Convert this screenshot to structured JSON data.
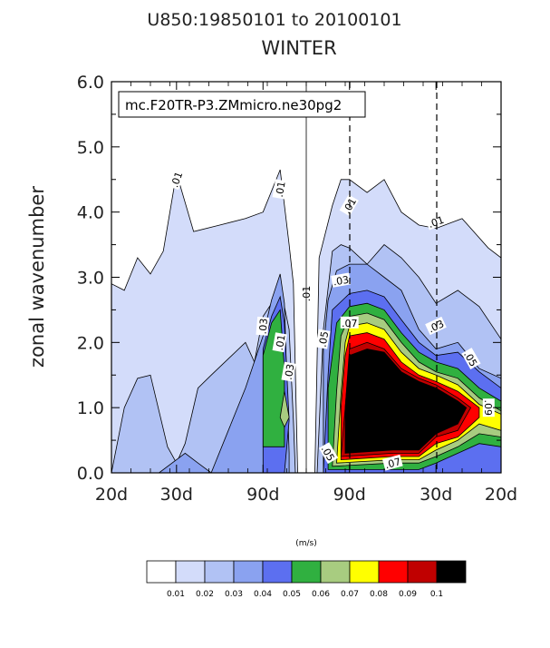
{
  "title_line1": "U850:19850101 to 20100101",
  "title_line2": "WINTER",
  "inset_label": "mc.F20TR-P3.ZMmicro.ne30pg2",
  "colorbar_units": "(m/s)",
  "chart_data": {
    "type": "contour",
    "ylabel": "zonal wavenumber",
    "xlabel": "",
    "ylim": [
      0.0,
      6.0
    ],
    "y_ticks": [
      "0.0",
      "1.0",
      "2.0",
      "3.0",
      "4.0",
      "5.0",
      "6.0"
    ],
    "x_ticks": [
      "20d",
      "30d",
      "90d",
      "90d",
      "30d",
      "20d"
    ],
    "x_tick_positions_freq": [
      -0.05,
      -0.0333,
      -0.0111,
      0.0111,
      0.0333,
      0.05
    ],
    "x_unit": "frequency (cycles/day), period labels in days; westward negative, eastward positive",
    "levels": [
      0.01,
      0.02,
      0.03,
      0.04,
      0.05,
      0.06,
      0.07,
      0.08,
      0.09,
      0.1
    ],
    "level_colors": [
      "#ffffff",
      "#d3dcfa",
      "#b1c2f4",
      "#8aa2f0",
      "#5c6ff0",
      "#30b040",
      "#a8cc80",
      "#ffff00",
      "#ff0000",
      "#c00000",
      "#000000"
    ],
    "colorbar_labels": [
      "0.01",
      "0.02",
      "0.03",
      "0.04",
      "0.05",
      "0.06",
      "0.07",
      "0.08",
      "0.09",
      "0.1"
    ],
    "contour_labels": [
      ".01",
      ".01",
      ".01",
      ".01",
      ".01",
      ".01",
      ".03",
      ".03",
      ".03",
      ".03",
      ".05",
      ".05",
      ".05",
      ".07",
      ".07",
      ".09"
    ],
    "regions": [
      {
        "level": 0.01,
        "points": [
          [
            -0.05,
            0.0
          ],
          [
            -0.05,
            2.9
          ],
          [
            -0.0467,
            2.8
          ],
          [
            -0.0433,
            3.3
          ],
          [
            -0.04,
            3.05
          ],
          [
            -0.0367,
            3.4
          ],
          [
            -0.0333,
            4.6
          ],
          [
            -0.0289,
            3.7
          ],
          [
            -0.0222,
            3.8
          ],
          [
            -0.0156,
            3.9
          ],
          [
            -0.0111,
            4.0
          ],
          [
            -0.0067,
            4.65
          ],
          [
            -0.0044,
            3.5
          ],
          [
            -0.0033,
            2.9
          ],
          [
            -0.0022,
            0.0
          ]
        ]
      },
      {
        "level": 0.01,
        "points": [
          [
            0.0022,
            0.0
          ],
          [
            0.0033,
            3.3
          ],
          [
            0.0067,
            4.1
          ],
          [
            0.0089,
            4.5
          ],
          [
            0.0111,
            4.5
          ],
          [
            0.0156,
            4.3
          ],
          [
            0.02,
            4.5
          ],
          [
            0.0244,
            4.0
          ],
          [
            0.0289,
            3.8
          ],
          [
            0.0333,
            3.75
          ],
          [
            0.04,
            3.9
          ],
          [
            0.0467,
            3.45
          ],
          [
            0.05,
            3.3
          ],
          [
            0.05,
            0.0
          ]
        ]
      },
      {
        "level": 0.02,
        "points": [
          [
            -0.05,
            0.0
          ],
          [
            -0.0467,
            1.0
          ],
          [
            -0.0433,
            1.45
          ],
          [
            -0.04,
            1.5
          ],
          [
            -0.0356,
            0.4
          ],
          [
            -0.0333,
            0.15
          ],
          [
            -0.0311,
            0.45
          ],
          [
            -0.0278,
            1.3
          ],
          [
            -0.0244,
            1.5
          ],
          [
            -0.02,
            1.75
          ],
          [
            -0.0156,
            2.0
          ],
          [
            -0.0133,
            1.7
          ],
          [
            -0.0111,
            2.4
          ],
          [
            -0.0067,
            2.8
          ],
          [
            -0.0056,
            2.55
          ],
          [
            -0.0044,
            2.2
          ],
          [
            -0.0033,
            0.8
          ],
          [
            -0.0028,
            0.0
          ]
        ]
      },
      {
        "level": 0.02,
        "points": [
          [
            0.0028,
            0.0
          ],
          [
            0.0044,
            2.2
          ],
          [
            0.0067,
            3.4
          ],
          [
            0.0089,
            3.5
          ],
          [
            0.0111,
            3.45
          ],
          [
            0.0156,
            3.2
          ],
          [
            0.02,
            3.5
          ],
          [
            0.0244,
            3.3
          ],
          [
            0.0289,
            3.0
          ],
          [
            0.0333,
            2.6
          ],
          [
            0.0389,
            2.8
          ],
          [
            0.0444,
            2.55
          ],
          [
            0.05,
            2.05
          ],
          [
            0.05,
            0.0
          ]
        ]
      },
      {
        "level": 0.03,
        "points": [
          [
            -0.0378,
            0.0
          ],
          [
            -0.0311,
            0.3
          ],
          [
            -0.0278,
            0.15
          ],
          [
            -0.0244,
            0.0
          ]
        ]
      },
      {
        "level": 0.03,
        "points": [
          [
            -0.0244,
            0.0
          ],
          [
            -0.02,
            0.65
          ],
          [
            -0.0156,
            1.3
          ],
          [
            -0.0111,
            2.1
          ],
          [
            -0.0089,
            2.65
          ],
          [
            -0.0067,
            3.05
          ],
          [
            -0.0056,
            2.6
          ],
          [
            -0.0044,
            0.3
          ],
          [
            -0.0044,
            0.0
          ]
        ]
      },
      {
        "level": 0.03,
        "points": [
          [
            0.0044,
            0.0
          ],
          [
            0.0044,
            1.9
          ],
          [
            0.0056,
            2.65
          ],
          [
            0.0078,
            3.1
          ],
          [
            0.0111,
            3.2
          ],
          [
            0.0156,
            3.2
          ],
          [
            0.02,
            3.0
          ],
          [
            0.0244,
            2.8
          ],
          [
            0.0289,
            2.2
          ],
          [
            0.0333,
            1.9
          ],
          [
            0.0389,
            2.0
          ],
          [
            0.0444,
            1.6
          ],
          [
            0.05,
            1.45
          ],
          [
            0.05,
            0.0
          ]
        ]
      },
      {
        "level": 0.04,
        "points": [
          [
            -0.0111,
            0.0
          ],
          [
            -0.0111,
            1.9
          ],
          [
            -0.0089,
            2.4
          ],
          [
            -0.0067,
            2.7
          ],
          [
            -0.0056,
            2.3
          ],
          [
            -0.0044,
            0.8
          ],
          [
            -0.0056,
            0.0
          ]
        ]
      },
      {
        "level": 0.04,
        "points": [
          [
            0.0044,
            0.0
          ],
          [
            0.0056,
            1.5
          ],
          [
            0.0067,
            2.5
          ],
          [
            0.0111,
            2.75
          ],
          [
            0.0156,
            2.8
          ],
          [
            0.02,
            2.7
          ],
          [
            0.0244,
            2.35
          ],
          [
            0.0289,
            2.0
          ],
          [
            0.0333,
            1.8
          ],
          [
            0.0389,
            1.85
          ],
          [
            0.0444,
            1.55
          ],
          [
            0.05,
            1.3
          ],
          [
            0.05,
            0.0
          ]
        ]
      },
      {
        "level": 0.05,
        "points": [
          [
            -0.0111,
            0.4
          ],
          [
            -0.0111,
            1.8
          ],
          [
            -0.0089,
            2.3
          ],
          [
            -0.0067,
            2.5
          ],
          [
            -0.0056,
            1.6
          ],
          [
            -0.0056,
            0.4
          ]
        ]
      },
      {
        "level": 0.05,
        "points": [
          [
            0.0056,
            0.05
          ],
          [
            0.0056,
            1.3
          ],
          [
            0.0078,
            2.3
          ],
          [
            0.0111,
            2.55
          ],
          [
            0.0156,
            2.6
          ],
          [
            0.02,
            2.5
          ],
          [
            0.0244,
            2.15
          ],
          [
            0.0289,
            1.85
          ],
          [
            0.0333,
            1.7
          ],
          [
            0.0389,
            1.6
          ],
          [
            0.0444,
            1.3
          ],
          [
            0.05,
            1.1
          ],
          [
            0.05,
            0.4
          ],
          [
            0.0444,
            0.45
          ],
          [
            0.0389,
            0.3
          ],
          [
            0.0333,
            0.15
          ],
          [
            0.0289,
            0.05
          ]
        ]
      },
      {
        "level": 0.06,
        "points": [
          [
            -0.0067,
            0.85
          ],
          [
            -0.0056,
            1.25
          ],
          [
            -0.0044,
            0.85
          ],
          [
            -0.0056,
            0.7
          ]
        ]
      },
      {
        "level": 0.06,
        "points": [
          [
            0.0067,
            0.1
          ],
          [
            0.0078,
            1.25
          ],
          [
            0.0089,
            2.1
          ],
          [
            0.0111,
            2.4
          ],
          [
            0.0156,
            2.45
          ],
          [
            0.02,
            2.35
          ],
          [
            0.0244,
            2.0
          ],
          [
            0.0289,
            1.7
          ],
          [
            0.0333,
            1.55
          ],
          [
            0.0389,
            1.45
          ],
          [
            0.0444,
            1.15
          ],
          [
            0.05,
            0.95
          ],
          [
            0.05,
            0.55
          ],
          [
            0.0444,
            0.6
          ],
          [
            0.0389,
            0.4
          ],
          [
            0.0333,
            0.25
          ],
          [
            0.0289,
            0.15
          ],
          [
            0.0222,
            0.15
          ]
        ]
      },
      {
        "level": 0.07,
        "points": [
          [
            0.0078,
            0.15
          ],
          [
            0.0089,
            1.2
          ],
          [
            0.01,
            2.0
          ],
          [
            0.0111,
            2.25
          ],
          [
            0.0156,
            2.3
          ],
          [
            0.02,
            2.2
          ],
          [
            0.0244,
            1.85
          ],
          [
            0.0289,
            1.6
          ],
          [
            0.0333,
            1.5
          ],
          [
            0.0389,
            1.35
          ],
          [
            0.0444,
            1.05
          ],
          [
            0.05,
            0.9
          ],
          [
            0.05,
            0.65
          ],
          [
            0.0444,
            0.75
          ],
          [
            0.0389,
            0.5
          ],
          [
            0.0333,
            0.35
          ],
          [
            0.0289,
            0.2
          ],
          [
            0.0222,
            0.2
          ]
        ]
      },
      {
        "level": 0.08,
        "points": [
          [
            0.0089,
            0.2
          ],
          [
            0.0089,
            1.0
          ],
          [
            0.01,
            1.8
          ],
          [
            0.0111,
            2.1
          ],
          [
            0.0156,
            2.15
          ],
          [
            0.02,
            2.05
          ],
          [
            0.0244,
            1.7
          ],
          [
            0.0289,
            1.5
          ],
          [
            0.0333,
            1.4
          ],
          [
            0.0389,
            1.25
          ],
          [
            0.0444,
            1.0
          ],
          [
            0.0444,
            0.85
          ],
          [
            0.0389,
            0.55
          ],
          [
            0.0333,
            0.45
          ],
          [
            0.0289,
            0.25
          ],
          [
            0.0222,
            0.25
          ]
        ]
      },
      {
        "level": 0.09,
        "points": [
          [
            0.0089,
            0.25
          ],
          [
            0.01,
            1.0
          ],
          [
            0.0111,
            1.9
          ],
          [
            0.0156,
            2.0
          ],
          [
            0.02,
            1.9
          ],
          [
            0.0244,
            1.6
          ],
          [
            0.0289,
            1.45
          ],
          [
            0.0333,
            1.35
          ],
          [
            0.0389,
            1.15
          ],
          [
            0.0422,
            1.0
          ],
          [
            0.0389,
            0.65
          ],
          [
            0.0333,
            0.55
          ],
          [
            0.0289,
            0.3
          ],
          [
            0.0222,
            0.3
          ]
        ]
      },
      {
        "level": 0.1,
        "points": [
          [
            0.01,
            0.3
          ],
          [
            0.01,
            1.0
          ],
          [
            0.0111,
            1.8
          ],
          [
            0.0156,
            1.9
          ],
          [
            0.02,
            1.85
          ],
          [
            0.0244,
            1.55
          ],
          [
            0.0289,
            1.4
          ],
          [
            0.0333,
            1.3
          ],
          [
            0.0389,
            1.1
          ],
          [
            0.0411,
            1.0
          ],
          [
            0.0389,
            0.75
          ],
          [
            0.0333,
            0.6
          ],
          [
            0.0289,
            0.35
          ],
          [
            0.0222,
            0.35
          ]
        ]
      }
    ]
  }
}
